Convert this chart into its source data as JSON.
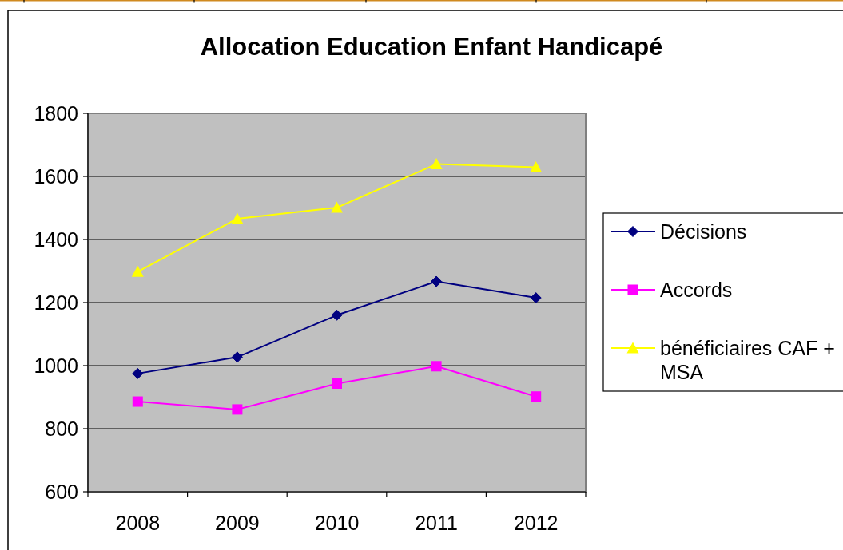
{
  "chart_data": {
    "type": "line",
    "title": "Allocation Education Enfant Handicapé",
    "categories": [
      "2008",
      "2009",
      "2010",
      "2011",
      "2012"
    ],
    "series": [
      {
        "name": "Décisions",
        "color": "#000080",
        "marker": "diamond",
        "values": [
          975,
          1027,
          1160,
          1267,
          1215
        ]
      },
      {
        "name": "Accords",
        "color": "#ff00ff",
        "marker": "square",
        "values": [
          886,
          861,
          943,
          998,
          902
        ]
      },
      {
        "name": "bénéficiaires CAF + MSA",
        "color": "#ffff00",
        "marker": "triangle",
        "values": [
          1298,
          1466,
          1501,
          1639,
          1629
        ]
      }
    ],
    "ylim": [
      600,
      1800
    ],
    "yticks": [
      600,
      800,
      1000,
      1200,
      1400,
      1600,
      1800
    ],
    "grid": "y",
    "legend": "right"
  }
}
